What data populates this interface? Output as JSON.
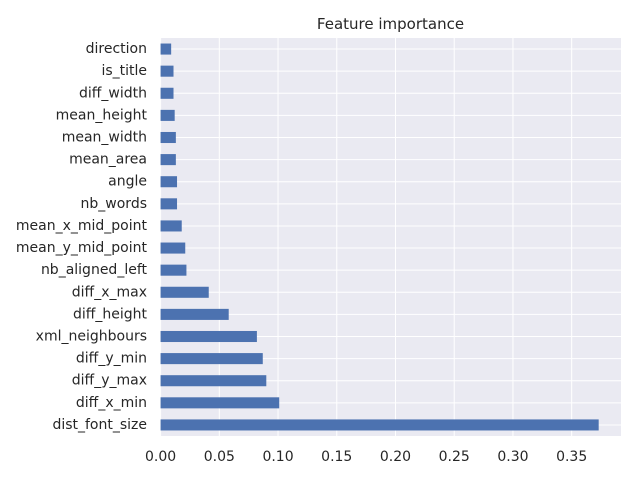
{
  "chart_data": {
    "type": "bar",
    "orientation": "horizontal",
    "title": "Feature importance",
    "xlabel": "",
    "ylabel": "",
    "categories": [
      "dist_font_size",
      "diff_x_min",
      "diff_y_max",
      "diff_y_min",
      "xml_neighbours",
      "diff_height",
      "diff_x_max",
      "nb_aligned_left",
      "mean_y_mid_point",
      "mean_x_mid_point",
      "nb_words",
      "angle",
      "mean_area",
      "mean_width",
      "mean_height",
      "diff_width",
      "is_title",
      "direction"
    ],
    "values": [
      0.373,
      0.101,
      0.09,
      0.087,
      0.082,
      0.058,
      0.041,
      0.022,
      0.021,
      0.018,
      0.014,
      0.014,
      0.013,
      0.013,
      0.012,
      0.011,
      0.011,
      0.009
    ],
    "xlim": [
      -0.0005,
      0.392
    ],
    "xticks": [
      0.0,
      0.05,
      0.1,
      0.15,
      0.2,
      0.25,
      0.3,
      0.35
    ],
    "xtick_labels": [
      "0.00",
      "0.05",
      "0.10",
      "0.15",
      "0.20",
      "0.25",
      "0.30",
      "0.35"
    ],
    "grid": true,
    "legend": "none",
    "colors": {
      "bar": "#4C72B0",
      "axes_background": "#EAEAF2",
      "grid": "#FFFFFF",
      "text": "#262626"
    }
  }
}
